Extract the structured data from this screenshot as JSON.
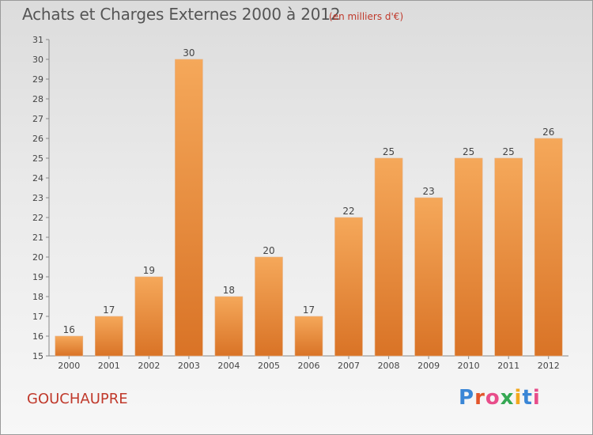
{
  "header": {
    "title": "Achats et Charges Externes 2000 à 2012",
    "unit_note": "(en milliers d'€)"
  },
  "footer": {
    "commune": "GOUCHAUPRE",
    "logo_text": "Proxiti",
    "logo_colors": [
      "#3a86d6",
      "#e2562b",
      "#e84d8a",
      "#35a853",
      "#f2a81d",
      "#3a86d6",
      "#e84d8a"
    ]
  },
  "colors": {
    "bar_top": "#f5a85a",
    "bar_bottom": "#d97326",
    "accent_red": "#c0392b"
  },
  "chart_data": {
    "type": "bar",
    "categories": [
      "2000",
      "2001",
      "2002",
      "2003",
      "2004",
      "2005",
      "2006",
      "2007",
      "2008",
      "2009",
      "2010",
      "2011",
      "2012"
    ],
    "values": [
      16,
      17,
      19,
      30,
      18,
      20,
      17,
      22,
      25,
      23,
      25,
      25,
      26
    ],
    "ylim": [
      15,
      31
    ],
    "yticks": [
      15,
      16,
      17,
      18,
      19,
      20,
      21,
      22,
      23,
      24,
      25,
      26,
      27,
      28,
      29,
      30,
      31
    ],
    "grid": false,
    "data_labels": true
  }
}
